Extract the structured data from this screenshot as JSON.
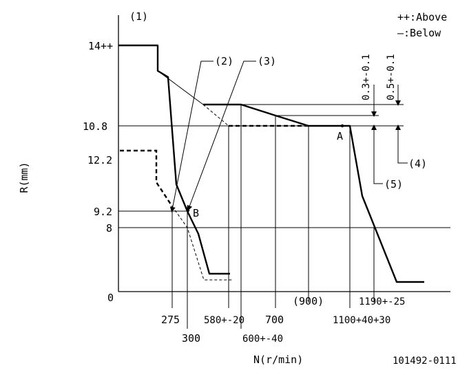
{
  "header": {
    "corner_label": "(1)",
    "legend_above": "++:Above",
    "legend_below": "—:Below"
  },
  "axes": {
    "y_title": "R(mm)",
    "x_title": "N(r/min)"
  },
  "y_ticks": {
    "t14": "14++",
    "t10_8": "10.8",
    "t12_2": "12.2",
    "t9_2": "9.2",
    "t8": "8",
    "t0": "0"
  },
  "x_ticks": {
    "t275": "275",
    "t300": "300",
    "t580": "580+-20",
    "t600": "600+-40",
    "t700": "700",
    "t900": "(900)",
    "t1100": "1100+40+30",
    "t1190": "1190+-25"
  },
  "callouts": {
    "c2": "(2)",
    "c3": "(3)",
    "c4": "(4)",
    "c5": "(5)",
    "point_a": "A",
    "point_b": "B",
    "tol_03": "0.3+-0.1",
    "tol_05": "0.5+-0.1"
  },
  "footer": {
    "drawing_number": "101492-0111"
  }
}
